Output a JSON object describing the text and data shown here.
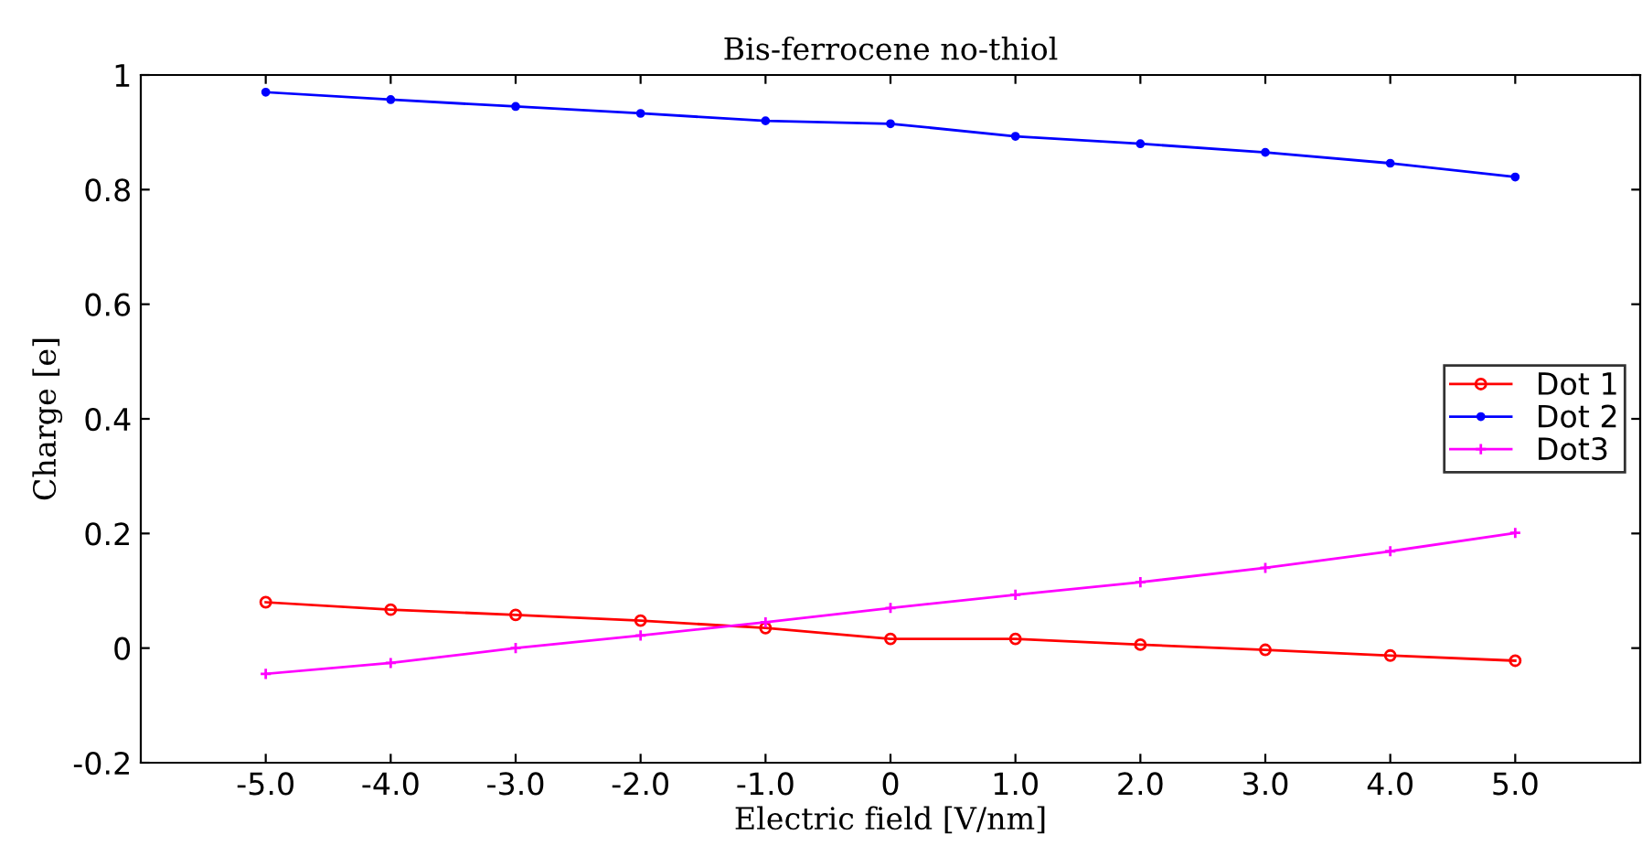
{
  "chart_data": {
    "type": "line",
    "title": "Bis-ferrocene no-thiol",
    "xlabel": "Electric field [V/nm]",
    "ylabel": "Charge [e]",
    "x": [
      -5,
      -4,
      -3,
      -2,
      -1,
      0,
      1,
      2,
      3,
      4,
      5
    ],
    "series": [
      {
        "name": "Dot 1",
        "color": "#ff0000",
        "marker": "circle",
        "values": [
          0.08,
          0.067,
          0.058,
          0.048,
          0.035,
          0.016,
          0.016,
          0.006,
          -0.003,
          -0.013,
          -0.022
        ]
      },
      {
        "name": "Dot 2",
        "color": "#0000ff",
        "marker": "dot",
        "values": [
          0.97,
          0.957,
          0.945,
          0.933,
          0.92,
          0.915,
          0.893,
          0.88,
          0.865,
          0.846,
          0.822
        ]
      },
      {
        "name": "Dot3",
        "color": "#ff00ff",
        "marker": "cross",
        "values": [
          -0.045,
          -0.026,
          0.0,
          0.022,
          0.045,
          0.07,
          0.093,
          0.115,
          0.14,
          0.169,
          0.201
        ]
      }
    ],
    "xlim": [
      -6,
      6
    ],
    "xticks": [
      {
        "value": -5,
        "label": "-5.0"
      },
      {
        "value": -4,
        "label": "-4.0"
      },
      {
        "value": -3,
        "label": "-3.0"
      },
      {
        "value": -2,
        "label": "-2.0"
      },
      {
        "value": -1,
        "label": "-1.0"
      },
      0,
      {
        "value": 1,
        "label": "1.0"
      },
      {
        "value": 2,
        "label": "2.0"
      },
      {
        "value": 3,
        "label": "3.0"
      },
      {
        "value": 4,
        "label": "4.0"
      },
      {
        "value": 5,
        "label": "5.0"
      }
    ],
    "ylim": [
      -0.2,
      1
    ],
    "yticks": [
      -0.2,
      0,
      0.2,
      0.4,
      0.6,
      0.8,
      1
    ],
    "grid": false,
    "legend": "right"
  }
}
